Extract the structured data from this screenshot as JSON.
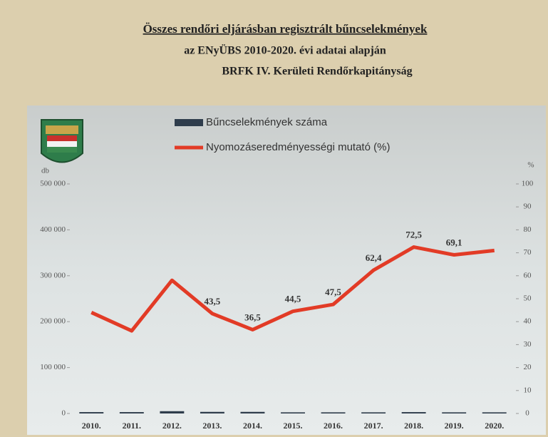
{
  "chart_data": {
    "type": "combo",
    "title": "Összes rendőri eljárásban regisztrált bűncselekmények",
    "subtitle": "az ENyÜBS 2010-2020. évi adatai alapján",
    "organization": "BRFK IV. Kerületi Rendőrkapitányság",
    "y_label": "db",
    "y2_label": "%",
    "categories": [
      "2010.",
      "2011.",
      "2012.",
      "2013.",
      "2014.",
      "2015.",
      "2016.",
      "2017.",
      "2018.",
      "2019.",
      "2020."
    ],
    "series": [
      {
        "name": "Bűncselekmények száma",
        "type": "bar",
        "color": "#2f3d4c",
        "values": [
          3000,
          3000,
          5000,
          3500,
          3500,
          2500,
          2500,
          2500,
          3000,
          2500,
          2500
        ]
      },
      {
        "name": "Nyomozáseredményességi mutató (%)",
        "type": "line",
        "axis": "y2",
        "color": "#e23b26",
        "values": [
          44,
          36,
          58,
          43.5,
          36.5,
          44.5,
          47.5,
          62.4,
          72.5,
          69.1,
          71
        ],
        "value_labels": [
          null,
          null,
          null,
          "43,5",
          "36,5",
          "44,5",
          "47,5",
          "62,4",
          "72,5",
          "69,1",
          null
        ]
      }
    ],
    "ylim": [
      0,
      500000
    ],
    "yticks": [
      {
        "value": 0,
        "label": "0"
      },
      {
        "value": 100000,
        "label": "100 000"
      },
      {
        "value": 200000,
        "label": "200 000"
      },
      {
        "value": 300000,
        "label": "300 000"
      },
      {
        "value": 400000,
        "label": "400 000"
      },
      {
        "value": 500000,
        "label": "500 000"
      }
    ],
    "y2lim": [
      0,
      100
    ],
    "y2ticks": [
      0,
      10,
      20,
      30,
      40,
      50,
      60,
      70,
      80,
      90,
      100
    ]
  }
}
